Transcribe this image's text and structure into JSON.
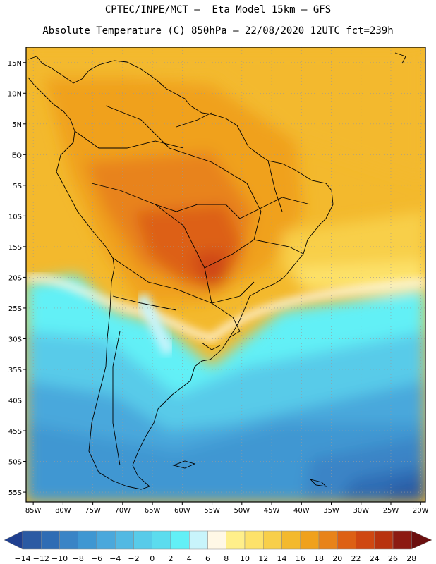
{
  "header": {
    "line1": "CPTEC/INPE/MCT –  Eta Model 15km – GFS",
    "line2": "Absolute Temperature (C) 850hPa – 22/08/2020 12UTC fct=239h"
  },
  "map": {
    "lat_labels": [
      "15N",
      "10N",
      "5N",
      "EQ",
      "5S",
      "10S",
      "15S",
      "20S",
      "25S",
      "30S",
      "35S",
      "40S",
      "45S",
      "50S",
      "55S"
    ],
    "lon_labels": [
      "85W",
      "80W",
      "75W",
      "70W",
      "65W",
      "60W",
      "55W",
      "50W",
      "45W",
      "40W",
      "35W",
      "30W",
      "25W",
      "20W"
    ],
    "lat_range": [
      15,
      -55
    ],
    "lon_range": [
      -85,
      -20
    ]
  },
  "colorbar": {
    "labels": [
      "-14",
      "-12",
      "-10",
      "-8",
      "-6",
      "-4",
      "-2",
      "0",
      "2",
      "4",
      "6",
      "8",
      "10",
      "12",
      "14",
      "16",
      "18",
      "20",
      "22",
      "24",
      "26",
      "28"
    ],
    "colors": [
      "#1f3f8f",
      "#2b5aa3",
      "#2f6cb4",
      "#3a84c6",
      "#3f97d2",
      "#4aa8dc",
      "#52b9e3",
      "#58cbe9",
      "#5cdcee",
      "#62f0f6",
      "#c8f4fb",
      "#fff8e6",
      "#ffef8a",
      "#fde26a",
      "#f8cf4a",
      "#f3b92d",
      "#f0a11c",
      "#e8831a",
      "#dd6014",
      "#cf4712",
      "#b8320f",
      "#8c1a12",
      "#6b0f0f"
    ]
  }
}
